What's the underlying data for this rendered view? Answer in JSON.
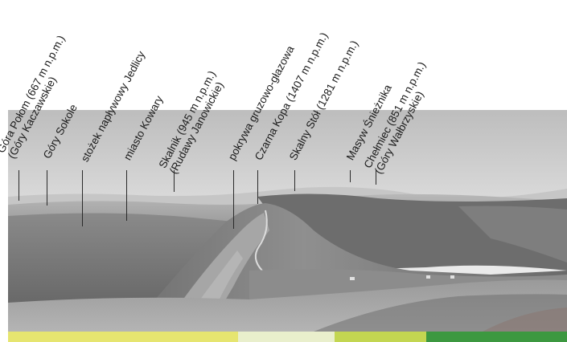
{
  "labels": [
    {
      "id": "gora-polom",
      "lines": [
        "Góra Połom (667 m n.p.m.)",
        "(Góry Kaczawskie)"
      ]
    },
    {
      "id": "gory-sokole",
      "lines": [
        "Góry Sokole"
      ]
    },
    {
      "id": "stozek-naplywowy",
      "lines": [
        "stożek napływowy Jedlicy"
      ]
    },
    {
      "id": "miasto-kowary",
      "lines": [
        "miasto Kowary"
      ]
    },
    {
      "id": "skalnik",
      "lines": [
        "Skalnik (945 m n.p.m.)",
        "(Rudawy Janowickie)"
      ]
    },
    {
      "id": "pokrywa",
      "lines": [
        "pokrywa gruzowo-głazowa"
      ]
    },
    {
      "id": "czarna-kopa",
      "lines": [
        "Czarna Kopa (1407 m n.p.m.)"
      ]
    },
    {
      "id": "skalny-stol",
      "lines": [
        "Skalny Stół (1281 m n.p.m.)"
      ]
    },
    {
      "id": "masyw-snieznika",
      "lines": [
        "Masyw Śnieżnika"
      ]
    },
    {
      "id": "chelmiec",
      "lines": [
        "Chełmiec (851 m n.p.m.)",
        "(Góry Wałbrzyskie)"
      ]
    }
  ],
  "legend_band": [
    "#e6e570",
    "#e9efcc",
    "#c3d651",
    "#3c9840"
  ]
}
